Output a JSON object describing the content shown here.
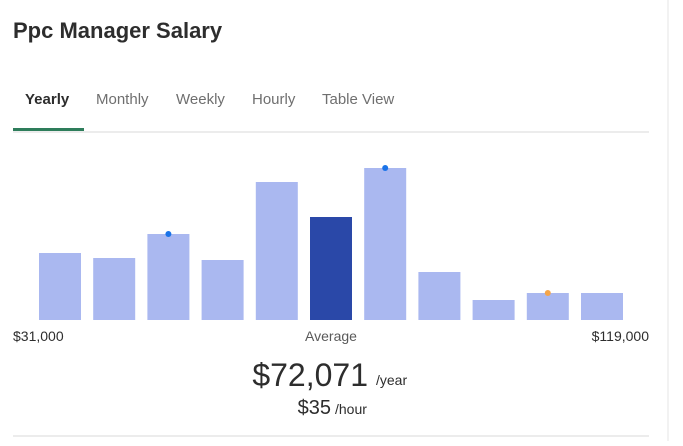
{
  "header": {
    "title": "Ppc Manager Salary"
  },
  "tabs": [
    "Yearly",
    "Monthly",
    "Weekly",
    "Hourly",
    "Table View"
  ],
  "chart_data": {
    "type": "bar",
    "values": [
      67,
      62,
      86,
      60,
      138,
      103,
      152,
      48,
      20,
      27,
      27
    ],
    "color": "#aab8f0",
    "highlight_color": "#2a48a8",
    "highlight": 5,
    "markers": [
      {
        "index": 2,
        "color": "#1a73e8"
      },
      {
        "index": 6,
        "color": "#1a73e8"
      },
      {
        "index": 9,
        "color": "#f5a54a"
      }
    ]
  },
  "range": {
    "min": "$31,000",
    "center": "Average",
    "max": "$119,000"
  },
  "salary": {
    "yearly": "$72,071",
    "yearly_unit": "/year",
    "hourly": "$35",
    "hourly_unit": "/hour"
  }
}
